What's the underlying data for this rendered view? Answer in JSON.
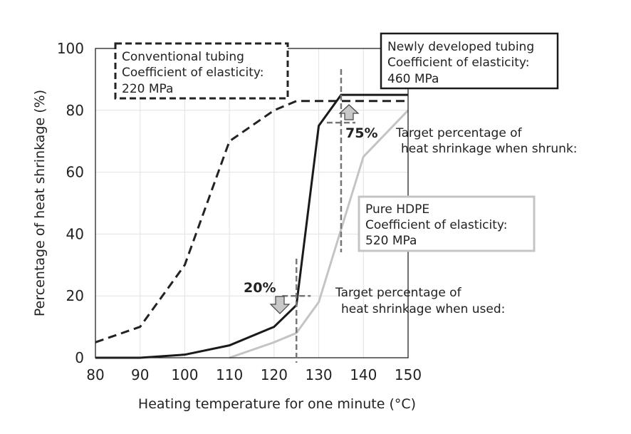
{
  "chart_data": {
    "type": "line",
    "title": "",
    "xlabel": "Heating temperature for one minute (°C)",
    "ylabel": "Percentage of heat shrinkage (%)",
    "xlim": [
      80,
      150
    ],
    "ylim": [
      0,
      100
    ],
    "xticks": [
      80,
      90,
      100,
      110,
      120,
      130,
      140,
      150
    ],
    "yticks": [
      0,
      20,
      40,
      60,
      80,
      100
    ],
    "grid": true,
    "series": [
      {
        "name": "Conventional tubing",
        "style": "dashed",
        "color": "#222222",
        "x": [
          80,
          90,
          100,
          110,
          120,
          125,
          130,
          150
        ],
        "y": [
          5,
          10,
          30,
          70,
          80,
          83,
          83,
          83
        ]
      },
      {
        "name": "Newly developed tubing",
        "style": "solid",
        "color": "#1a1a1a",
        "x": [
          80,
          90,
          100,
          110,
          120,
          125,
          130,
          135,
          150
        ],
        "y": [
          0,
          0,
          1,
          4,
          10,
          17,
          75,
          85,
          85
        ]
      },
      {
        "name": "Pure HDPE",
        "style": "solid",
        "color": "#c4c4c4",
        "x": [
          110,
          120,
          125,
          130,
          140,
          150
        ],
        "y": [
          0,
          5,
          8,
          18,
          65,
          80
        ]
      }
    ],
    "annotations": {
      "conventional": [
        "Conventional tubing",
        "Coefficient of elasticity:",
        "220 MPa"
      ],
      "new": [
        "Newly developed tubing",
        "Coefficient of elasticity:",
        "460 MPa"
      ],
      "hdpe": [
        "Pure HDPE",
        "Coefficient of elasticity:",
        "520 MPa"
      ],
      "target_used": {
        "label": [
          "Target percentage of",
          "heat shrinkage when used:"
        ],
        "value": "20%",
        "x": 125,
        "y": 20
      },
      "target_shrunk": {
        "label": [
          "Target percentage of",
          "heat shrinkage when shrunk:"
        ],
        "value": "75%",
        "x": 135,
        "y": 76
      }
    }
  }
}
